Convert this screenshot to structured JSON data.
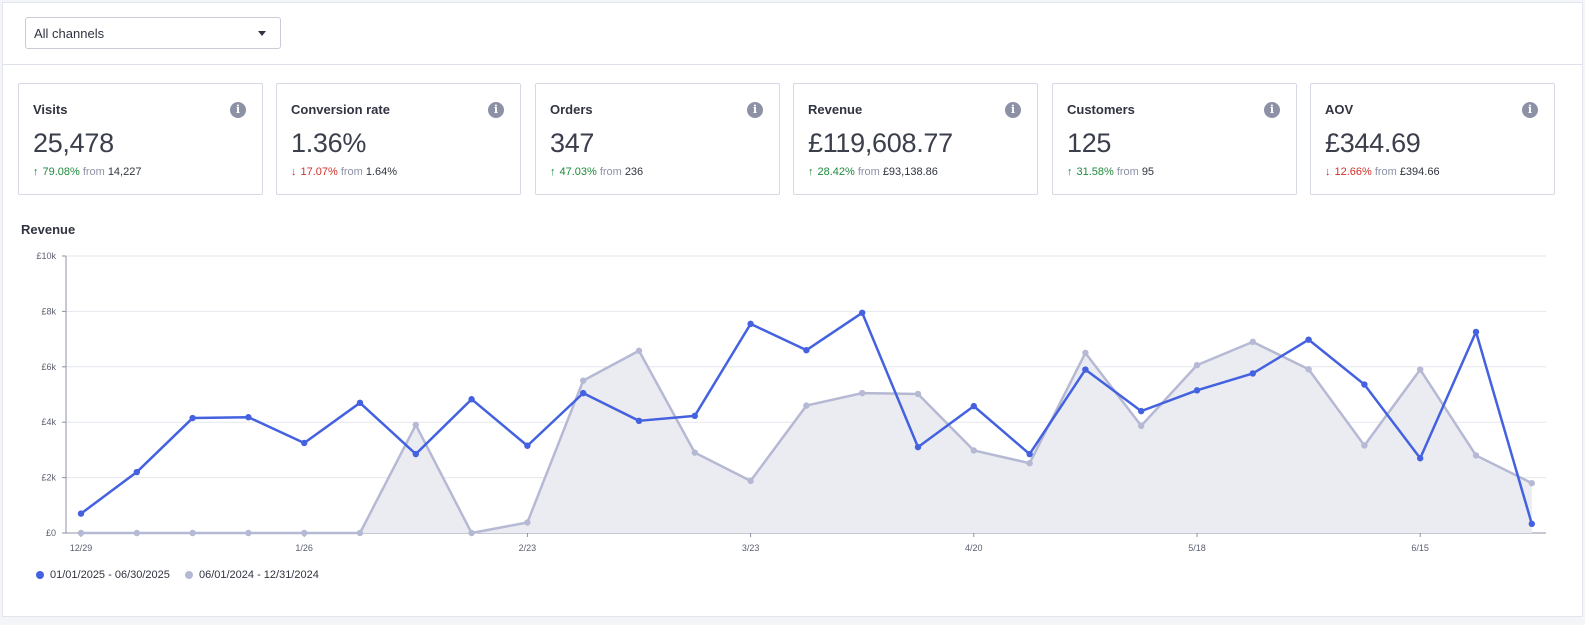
{
  "filter": {
    "selected": "All channels"
  },
  "metrics": [
    {
      "title": "Visits",
      "value": "25,478",
      "direction": "up",
      "change": "79.08%",
      "from_label": "from",
      "previous": "14,227"
    },
    {
      "title": "Conversion rate",
      "value": "1.36%",
      "direction": "down",
      "change": "17.07%",
      "from_label": "from",
      "previous": "1.64%"
    },
    {
      "title": "Orders",
      "value": "347",
      "direction": "up",
      "change": "47.03%",
      "from_label": "from",
      "previous": "236"
    },
    {
      "title": "Revenue",
      "value": "£119,608.77",
      "direction": "up",
      "change": "28.42%",
      "from_label": "from",
      "previous": "£93,138.86"
    },
    {
      "title": "Customers",
      "value": "125",
      "direction": "up",
      "change": "31.58%",
      "from_label": "from",
      "previous": "95"
    },
    {
      "title": "AOV",
      "value": "£344.69",
      "direction": "down",
      "change": "12.66%",
      "from_label": "from",
      "previous": "£394.66"
    }
  ],
  "icons": {
    "info": "info-icon",
    "dropdown": "chevron-down-icon",
    "trend_up": "arrow-up-icon",
    "trend_down": "arrow-down-icon"
  },
  "colors": {
    "current": "#4461e0",
    "previous": "#b6b9d3",
    "previous_fill": "#ebecf2",
    "up": "#1e8a3c",
    "down": "#d0302a"
  },
  "chart_title": "Revenue",
  "chart_data": {
    "type": "line",
    "title": "Revenue",
    "xlabel": "",
    "ylabel": "",
    "x": [
      "12/29",
      "1/5",
      "1/12",
      "1/19",
      "1/26",
      "2/2",
      "2/9",
      "2/16",
      "2/23",
      "3/2",
      "3/9",
      "3/16",
      "3/23",
      "3/30",
      "4/6",
      "4/13",
      "4/20",
      "4/27",
      "5/4",
      "5/11",
      "5/18",
      "5/25",
      "6/1",
      "6/8",
      "6/15",
      "6/22",
      "6/29"
    ],
    "x_tick_labels": [
      "12/29",
      "1/26",
      "2/23",
      "3/23",
      "4/20",
      "5/18",
      "6/15"
    ],
    "y_tick_labels": [
      "£0",
      "£2k",
      "£4k",
      "£6k",
      "£8k",
      "£10k"
    ],
    "ylim": [
      0,
      10000
    ],
    "grid": true,
    "legend_position": "bottom-left",
    "series": [
      {
        "name": "01/01/2025 - 06/30/2025",
        "style": "line",
        "values": [
          700,
          2200,
          4150,
          4180,
          3250,
          4700,
          2850,
          4830,
          3150,
          5050,
          4050,
          4230,
          7550,
          6600,
          7950,
          3100,
          4580,
          2850,
          5900,
          4400,
          5150,
          5760,
          6980,
          5360,
          2700,
          7260,
          330
        ]
      },
      {
        "name": "06/01/2024 - 12/31/2024",
        "style": "area",
        "values": [
          0,
          0,
          0,
          0,
          0,
          0,
          3900,
          0,
          380,
          5500,
          6580,
          2900,
          1880,
          4600,
          5050,
          5020,
          2980,
          2520,
          6500,
          3870,
          6060,
          6900,
          5910,
          3160,
          5900,
          2800,
          1800
        ]
      }
    ]
  }
}
